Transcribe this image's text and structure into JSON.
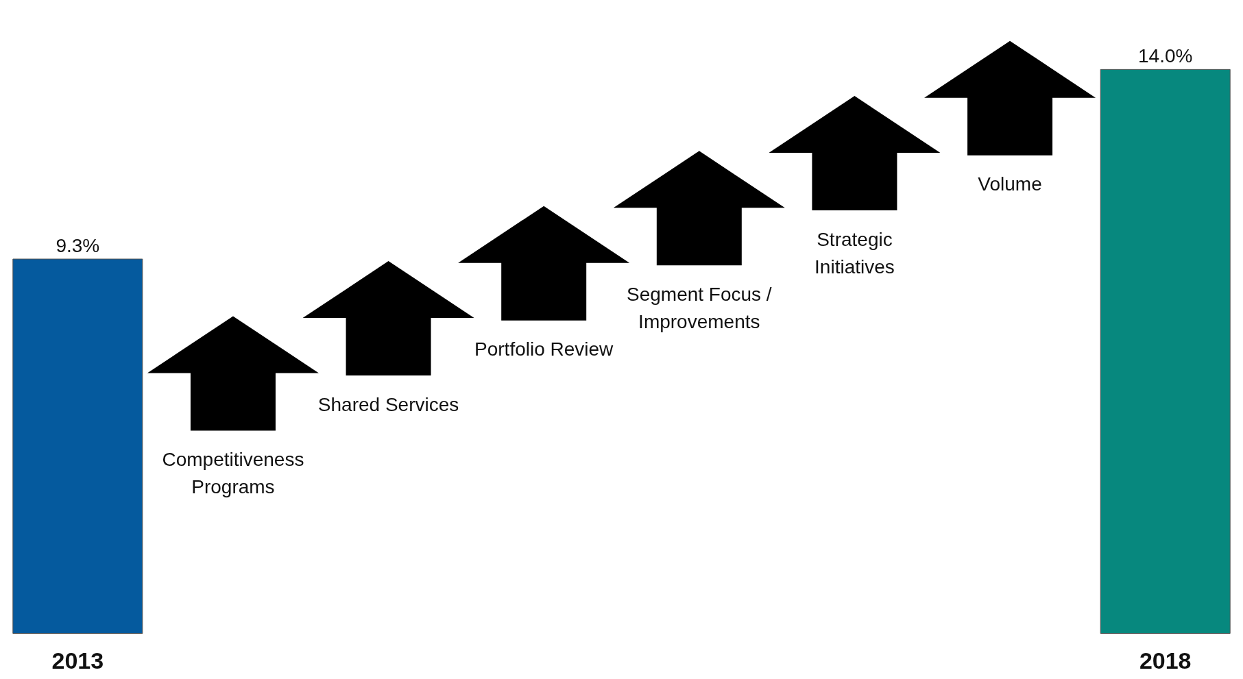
{
  "chart_data": {
    "type": "bar",
    "categories": [
      "2013",
      null,
      null,
      null,
      null,
      null,
      null,
      "2018"
    ],
    "values": [
      9.3,
      null,
      null,
      null,
      null,
      null,
      null,
      14.0
    ],
    "colors": [
      "#055a9e",
      null,
      null,
      null,
      null,
      null,
      null,
      "#07887e"
    ],
    "value_labels": [
      "9.3%",
      null,
      null,
      null,
      null,
      null,
      null,
      "14.0%"
    ],
    "tick_labels": "x",
    "annotations": [
      "Competitiveness\nPrograms",
      "Shared Services",
      "Portfolio Review",
      "Segment Focus /\nImprovements",
      "Strategic\nInitiatives",
      "Volume"
    ]
  }
}
